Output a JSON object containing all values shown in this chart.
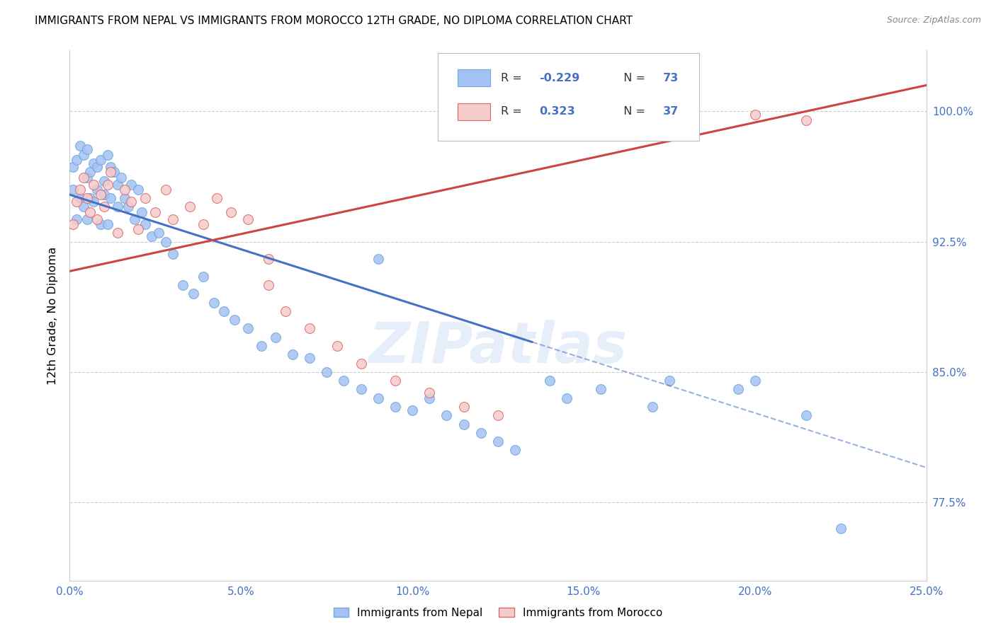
{
  "title": "IMMIGRANTS FROM NEPAL VS IMMIGRANTS FROM MOROCCO 12TH GRADE, NO DIPLOMA CORRELATION CHART",
  "source": "Source: ZipAtlas.com",
  "ylabel": "12th Grade, No Diploma",
  "nepal_R": -0.229,
  "nepal_N": 73,
  "morocco_R": 0.323,
  "morocco_N": 37,
  "nepal_color": "#a4c2f4",
  "morocco_color": "#f4cccc",
  "nepal_edge_color": "#6fa8dc",
  "morocco_edge_color": "#e06666",
  "nepal_line_color": "#4472c4",
  "morocco_line_color": "#cc4444",
  "watermark": "ZIPatlas",
  "xlim": [
    0.0,
    25.0
  ],
  "ylim": [
    73.0,
    103.5
  ],
  "x_tick_positions": [
    0.0,
    5.0,
    10.0,
    15.0,
    20.0,
    25.0
  ],
  "x_tick_labels": [
    "0.0%",
    "5.0%",
    "10.0%",
    "15.0%",
    "20.0%",
    "25.0%"
  ],
  "y_tick_positions": [
    77.5,
    85.0,
    92.5,
    100.0
  ],
  "y_tick_labels": [
    "77.5%",
    "85.0%",
    "92.5%",
    "100.0%"
  ],
  "nepal_trend": [
    0.0,
    25.0,
    95.2,
    79.5
  ],
  "nepal_solid_end_x": 13.5,
  "morocco_trend": [
    0.0,
    25.0,
    90.8,
    101.5
  ],
  "nepal_points_x": [
    0.1,
    0.1,
    0.2,
    0.2,
    0.3,
    0.3,
    0.4,
    0.4,
    0.5,
    0.5,
    0.5,
    0.6,
    0.6,
    0.7,
    0.7,
    0.8,
    0.8,
    0.9,
    0.9,
    1.0,
    1.0,
    1.1,
    1.1,
    1.2,
    1.2,
    1.3,
    1.4,
    1.4,
    1.5,
    1.6,
    1.7,
    1.8,
    1.9,
    2.0,
    2.1,
    2.2,
    2.4,
    2.6,
    2.8,
    3.0,
    3.3,
    3.6,
    3.9,
    4.2,
    4.5,
    4.8,
    5.2,
    5.6,
    6.0,
    6.5,
    7.0,
    7.5,
    8.0,
    8.5,
    9.0,
    9.5,
    10.0,
    10.5,
    11.0,
    11.5,
    12.0,
    12.5,
    13.0,
    9.0,
    14.0,
    14.5,
    15.5,
    17.0,
    17.5,
    19.5,
    20.0,
    21.5,
    22.5
  ],
  "nepal_points_y": [
    95.5,
    96.8,
    97.2,
    93.8,
    98.0,
    95.0,
    97.5,
    94.5,
    97.8,
    96.2,
    93.8,
    96.5,
    95.0,
    97.0,
    94.8,
    96.8,
    95.5,
    97.2,
    93.5,
    96.0,
    95.2,
    97.5,
    93.5,
    96.8,
    95.0,
    96.5,
    94.5,
    95.8,
    96.2,
    95.0,
    94.5,
    95.8,
    93.8,
    95.5,
    94.2,
    93.5,
    92.8,
    93.0,
    92.5,
    91.8,
    90.0,
    89.5,
    90.5,
    89.0,
    88.5,
    88.0,
    87.5,
    86.5,
    87.0,
    86.0,
    85.8,
    85.0,
    84.5,
    84.0,
    83.5,
    83.0,
    82.8,
    83.5,
    82.5,
    82.0,
    81.5,
    81.0,
    80.5,
    91.5,
    84.5,
    83.5,
    84.0,
    83.0,
    84.5,
    84.0,
    84.5,
    82.5,
    76.0
  ],
  "morocco_points_x": [
    0.1,
    0.2,
    0.3,
    0.4,
    0.5,
    0.6,
    0.7,
    0.8,
    0.9,
    1.0,
    1.1,
    1.2,
    1.4,
    1.6,
    1.8,
    2.0,
    2.2,
    2.5,
    2.8,
    3.0,
    3.5,
    3.9,
    4.3,
    4.7,
    5.2,
    5.8,
    6.3,
    7.0,
    7.8,
    8.5,
    9.5,
    10.5,
    11.5,
    12.5,
    5.8,
    20.0,
    21.5
  ],
  "morocco_points_y": [
    93.5,
    94.8,
    95.5,
    96.2,
    95.0,
    94.2,
    95.8,
    93.8,
    95.2,
    94.5,
    95.8,
    96.5,
    93.0,
    95.5,
    94.8,
    93.2,
    95.0,
    94.2,
    95.5,
    93.8,
    94.5,
    93.5,
    95.0,
    94.2,
    93.8,
    90.0,
    88.5,
    87.5,
    86.5,
    85.5,
    84.5,
    83.8,
    83.0,
    82.5,
    91.5,
    99.8,
    99.5
  ]
}
